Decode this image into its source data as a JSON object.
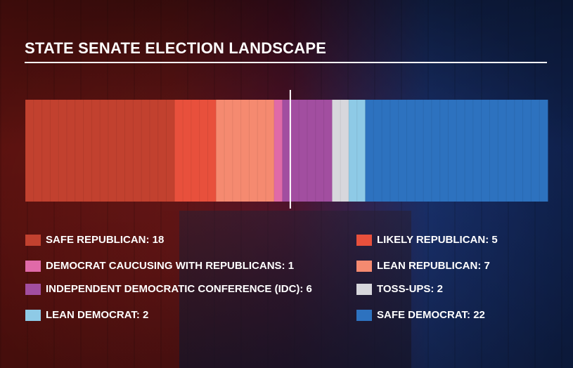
{
  "title": "STATE SENATE ELECTION LANDSCAPE",
  "chart_data": {
    "type": "bar",
    "stacked": true,
    "orientation": "horizontal",
    "total_seats": 63,
    "majority_marker_after_seat": 32,
    "segments": [
      {
        "name": "SAFE REPUBLICAN",
        "value": 18,
        "color": "#c2412f"
      },
      {
        "name": "LIKELY REPUBLICAN",
        "value": 5,
        "color": "#e8503c"
      },
      {
        "name": "LEAN REPUBLICAN",
        "value": 7,
        "color": "#f58a70"
      },
      {
        "name": "DEMOCRAT CAUCUSING WITH REPUBLICANS",
        "value": 1,
        "color": "#e06aa8"
      },
      {
        "name": "INDEPENDENT DEMOCRATIC CONFERENCE (IDC)",
        "value": 6,
        "color": "#a24ea0"
      },
      {
        "name": "TOSS-UPS",
        "value": 2,
        "color": "#d7d7dc"
      },
      {
        "name": "LEAN DEMOCRAT",
        "value": 2,
        "color": "#8ecae6"
      },
      {
        "name": "SAFE DEMOCRAT",
        "value": 22,
        "color": "#2d72bf"
      }
    ]
  },
  "legend": {
    "left": [
      {
        "label": "SAFE REPUBLICAN: 18",
        "color": "#c2412f"
      },
      {
        "label": "DEMOCRAT CAUCUSING WITH REPUBLICANS: 1",
        "color": "#e06aa8"
      },
      {
        "label": "INDEPENDENT DEMOCRATIC CONFERENCE (IDC): 6",
        "color": "#a24ea0"
      },
      {
        "label": "LEAN DEMOCRAT: 2",
        "color": "#8ecae6"
      }
    ],
    "right": [
      {
        "label": "LIKELY REPUBLICAN: 5",
        "color": "#e8503c"
      },
      {
        "label": "LEAN REPUBLICAN: 7",
        "color": "#f58a70"
      },
      {
        "label": "TOSS-UPS: 2",
        "color": "#d7d7dc"
      },
      {
        "label": "SAFE DEMOCRAT: 22",
        "color": "#2d72bf"
      }
    ]
  }
}
